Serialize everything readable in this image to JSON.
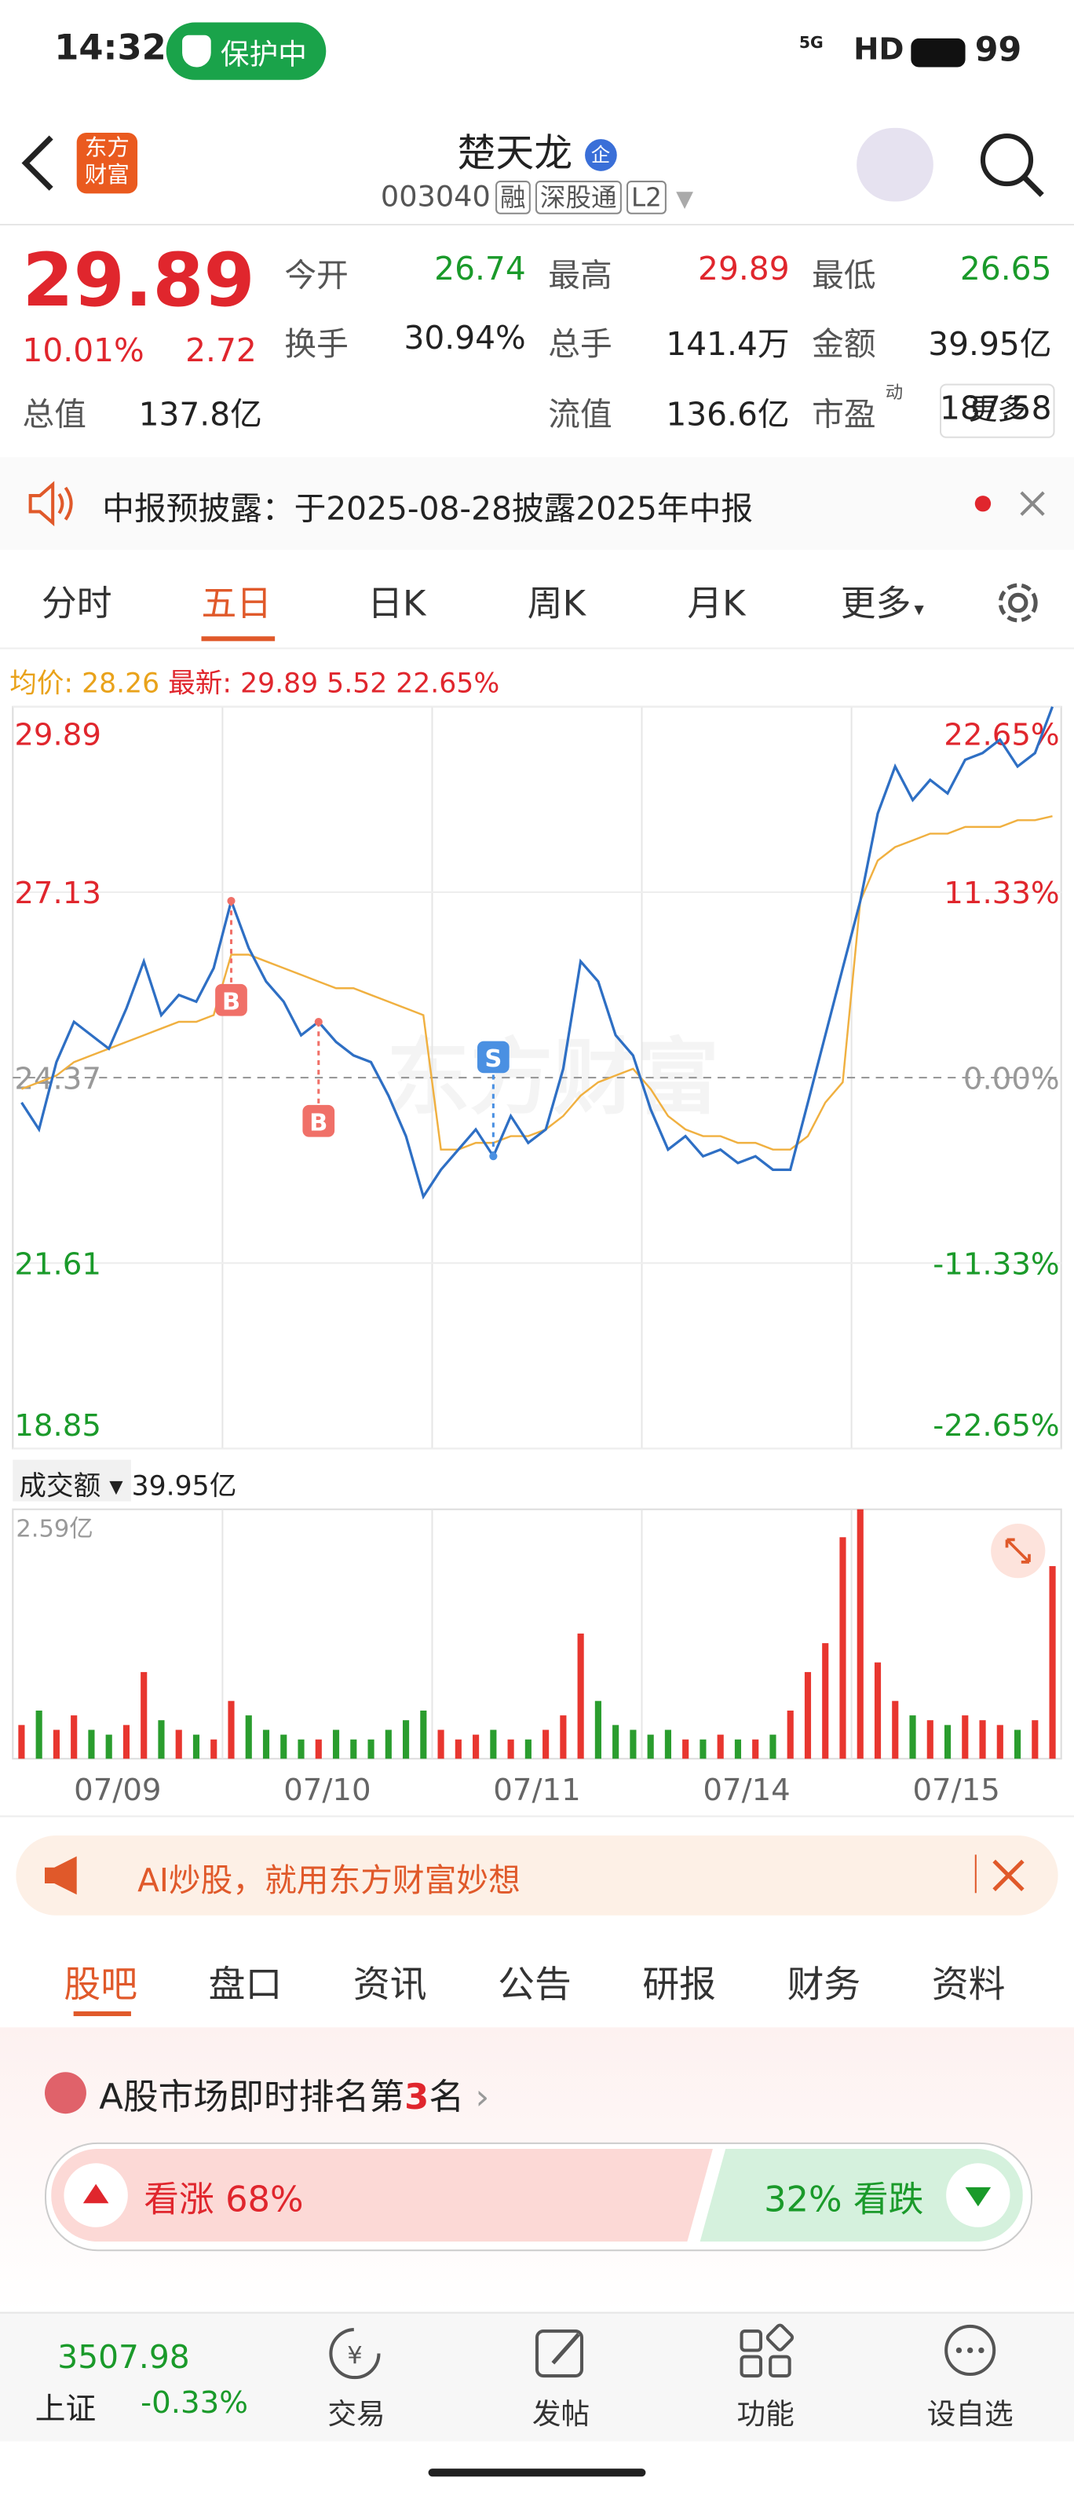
{
  "status_bar": {
    "time": "14:32",
    "protect": "保护中",
    "network": "5G",
    "hd": "HD",
    "battery": "99"
  },
  "header": {
    "logo": "东方财富",
    "name": "楚天龙",
    "badge": "企",
    "code": "003040",
    "tags": [
      "融",
      "深股通",
      "L2"
    ]
  },
  "quote": {
    "price": "29.89",
    "change_pct": "10.01%",
    "change": "2.72",
    "fields": [
      {
        "label": "今开",
        "value": "26.74"
      },
      {
        "label": "最高",
        "value": "29.89"
      },
      {
        "label": "最低",
        "value": "26.65"
      },
      {
        "label": "换手",
        "value": "30.94%"
      },
      {
        "label": "总手",
        "value": "141.4万"
      },
      {
        "label": "金额",
        "value": "39.95亿"
      },
      {
        "label": "总值",
        "value": "137.8亿"
      },
      {
        "label": "流值",
        "value": "136.6亿"
      },
      {
        "label": "市盈",
        "value": "187.58",
        "sup": "动"
      }
    ],
    "more": "更多"
  },
  "notice": "中报预披露：于2025-08-28披露2025年中报",
  "chart_tabs": [
    "分时",
    "五日",
    "日K",
    "周K",
    "月K",
    "更多"
  ],
  "chart_info": {
    "avg_label": "均价:",
    "avg": "28.26",
    "latest_label": "最新:",
    "latest": "29.89",
    "change": "5.52",
    "pct": "22.65%"
  },
  "chart_data": [
    {
      "type": "line",
      "xlim": [
        0,
        60
      ],
      "ylim": [
        18.85,
        29.89
      ],
      "yticks": [
        29.89,
        27.13,
        24.37,
        21.61,
        18.85
      ],
      "y2lim": [
        -22.65,
        22.65
      ],
      "y2ticks": [
        {
          "value": 22.65,
          "label": "22.65%"
        },
        {
          "value": 11.33,
          "label": "11.33%"
        },
        {
          "value": 0,
          "label": "0.00%"
        },
        {
          "value": -11.33,
          "label": "-11.33%"
        },
        {
          "value": -22.65,
          "label": "-22.65%"
        }
      ],
      "watermark": "东方财富",
      "series": [
        {
          "name": "最新",
          "color": "#2e6fc4",
          "values": [
            24.0,
            23.6,
            24.6,
            25.2,
            25.0,
            24.8,
            25.4,
            26.1,
            25.3,
            25.6,
            25.5,
            26.0,
            27.0,
            26.3,
            25.8,
            25.5,
            25.0,
            25.2,
            24.9,
            24.7,
            24.6,
            24.1,
            23.5,
            22.6,
            23.0,
            23.3,
            23.6,
            23.2,
            23.8,
            23.4,
            23.6,
            24.5,
            26.1,
            25.8,
            25.0,
            24.7,
            23.9,
            23.3,
            23.5,
            23.2,
            23.3,
            23.1,
            23.2,
            23.0,
            23.0,
            24.0,
            25.0,
            26.0,
            27.0,
            28.3,
            29.0,
            28.5,
            28.8,
            28.6,
            29.1,
            29.2,
            29.4,
            29.0,
            29.2,
            29.89
          ]
        },
        {
          "name": "均价",
          "color": "#f0b040",
          "values": [
            24.2,
            24.3,
            24.4,
            24.6,
            24.7,
            24.8,
            24.9,
            25.0,
            25.1,
            25.2,
            25.2,
            25.3,
            26.2,
            26.2,
            26.1,
            26.0,
            25.9,
            25.8,
            25.7,
            25.7,
            25.6,
            25.5,
            25.4,
            25.3,
            23.3,
            23.3,
            23.4,
            23.4,
            23.5,
            23.5,
            23.6,
            23.8,
            24.1,
            24.3,
            24.4,
            24.5,
            24.2,
            23.8,
            23.6,
            23.5,
            23.5,
            23.4,
            23.4,
            23.3,
            23.3,
            23.5,
            24.0,
            24.3,
            27.0,
            27.6,
            27.8,
            27.9,
            28.0,
            28.0,
            28.1,
            28.1,
            28.1,
            28.2,
            28.2,
            28.26
          ]
        }
      ],
      "annotations": [
        {
          "text": "B",
          "at": 12
        },
        {
          "text": "B",
          "at": 17
        },
        {
          "text": "S",
          "at": 27
        }
      ]
    },
    {
      "type": "bar",
      "title": "成交额",
      "total": "39.95亿",
      "xlim": [
        0,
        60
      ],
      "xticks": [
        {
          "value": 6,
          "label": "07/09"
        },
        {
          "value": 18,
          "label": "07/10"
        },
        {
          "value": 30,
          "label": "07/11"
        },
        {
          "value": 42,
          "label": "07/14"
        },
        {
          "value": 54,
          "label": "07/15"
        }
      ],
      "ylim": [
        0,
        2.59
      ],
      "yticks": [
        {
          "value": 2.59,
          "label": "2.59亿"
        }
      ],
      "up_color": "#e8362f",
      "down_color": "#2a9d2e",
      "values": [
        0.35,
        0.5,
        0.3,
        0.45,
        0.3,
        0.25,
        0.35,
        0.9,
        0.4,
        0.3,
        0.25,
        0.2,
        0.6,
        0.45,
        0.3,
        0.25,
        0.2,
        0.2,
        0.3,
        0.2,
        0.2,
        0.3,
        0.4,
        0.5,
        0.3,
        0.2,
        0.25,
        0.3,
        0.2,
        0.2,
        0.3,
        0.45,
        1.3,
        0.6,
        0.35,
        0.3,
        0.25,
        0.3,
        0.2,
        0.2,
        0.25,
        0.2,
        0.2,
        0.25,
        0.5,
        0.9,
        1.2,
        2.3,
        2.59,
        1.0,
        0.6,
        0.45,
        0.4,
        0.35,
        0.45,
        0.4,
        0.35,
        0.3,
        0.4,
        2.0
      ]
    }
  ],
  "ad": "AI炒股，就用东方财富妙想",
  "sub_tabs": [
    "股吧",
    "盘口",
    "资讯",
    "公告",
    "研报",
    "财务",
    "资料"
  ],
  "ranking": {
    "prefix": "A股市场即时排名第",
    "rank": "3",
    "suffix": "名"
  },
  "sentiment": {
    "up_label": "看涨",
    "up": "68%",
    "down": "32%",
    "down_label": "看跌"
  },
  "bottom_bar": {
    "index": {
      "name": "上证",
      "value": "3507.98",
      "change": "-0.33%"
    },
    "nav": [
      "交易",
      "发帖",
      "功能",
      "设自选"
    ]
  }
}
